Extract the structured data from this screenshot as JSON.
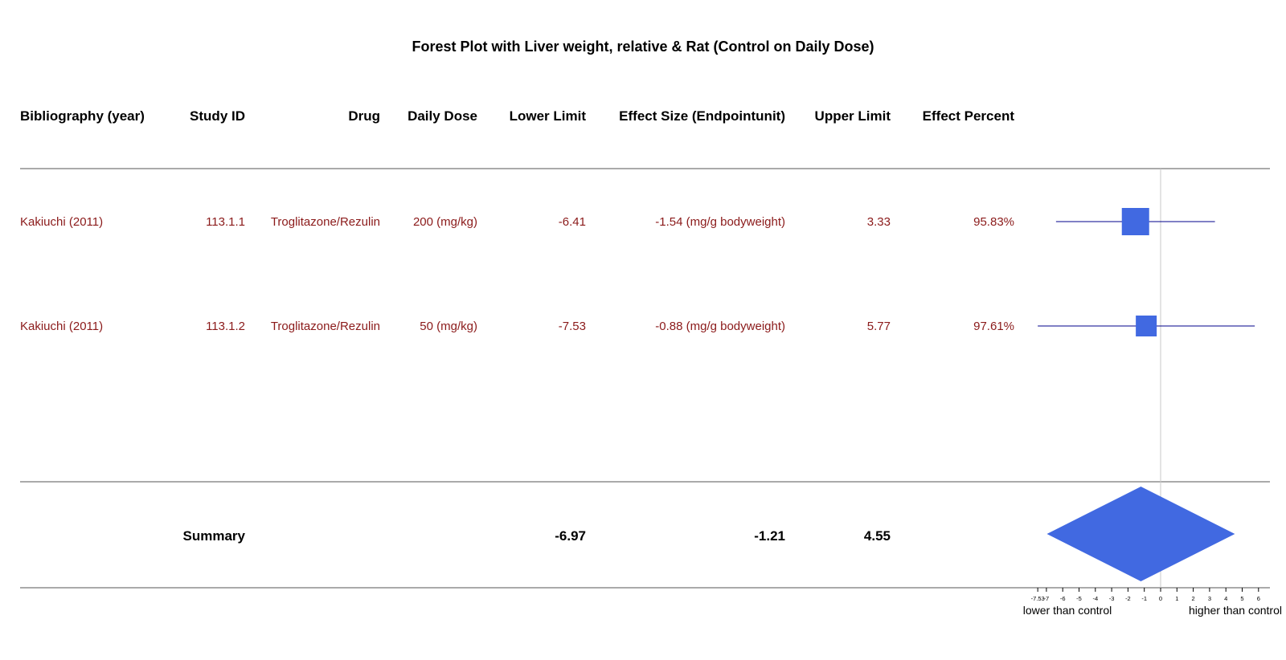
{
  "title": "Forest Plot with Liver weight, relative & Rat (Control on Daily Dose)",
  "columns": [
    "Bibliography (year)",
    "Study ID",
    "Drug",
    "Daily Dose",
    "Lower Limit",
    "Effect Size (Endpointunit)",
    "Upper Limit",
    "Effect Percent"
  ],
  "rows": [
    {
      "bibliography": "Kakiuchi (2011)",
      "study_id": "113.1.1",
      "drug": "Troglitazone/Rezulin",
      "dose": "200 (mg/kg)",
      "lower": "-6.41",
      "effect": "-1.54 (mg/g bodyweight)",
      "upper": "3.33",
      "percent": "95.83%"
    },
    {
      "bibliography": "Kakiuchi (2011)",
      "study_id": "113.1.2",
      "drug": "Troglitazone/Rezulin",
      "dose": "50 (mg/kg)",
      "lower": "-7.53",
      "effect": "-0.88 (mg/g bodyweight)",
      "upper": "5.77",
      "percent": "97.61%"
    }
  ],
  "summary": {
    "label": "Summary",
    "lower": "-6.97",
    "effect": "-1.21",
    "upper": "4.55"
  },
  "axis": {
    "lower_label": "lower than control",
    "upper_label": "higher than control"
  },
  "colors": {
    "marker": "#4169e1",
    "ci_line": "#00008b",
    "row_text": "#8b1a1a",
    "zero_line": "#c8c8c8"
  },
  "chart_data": {
    "type": "forest",
    "studies": [
      {
        "label": "113.1.1",
        "effect": -1.54,
        "lower": -6.41,
        "upper": 3.33,
        "weight_percent": 95.83
      },
      {
        "label": "113.1.2",
        "effect": -0.88,
        "lower": -7.53,
        "upper": 5.77,
        "weight_percent": 97.61
      }
    ],
    "summary": {
      "effect": -1.21,
      "lower": -6.97,
      "upper": 4.55
    },
    "xticks": [
      -7.53,
      -7,
      -6,
      -5,
      -4,
      -3,
      -2,
      -1,
      0,
      1,
      2,
      3,
      4,
      5,
      6
    ],
    "xlim": [
      -7.53,
      6
    ],
    "reference_line": 0
  }
}
